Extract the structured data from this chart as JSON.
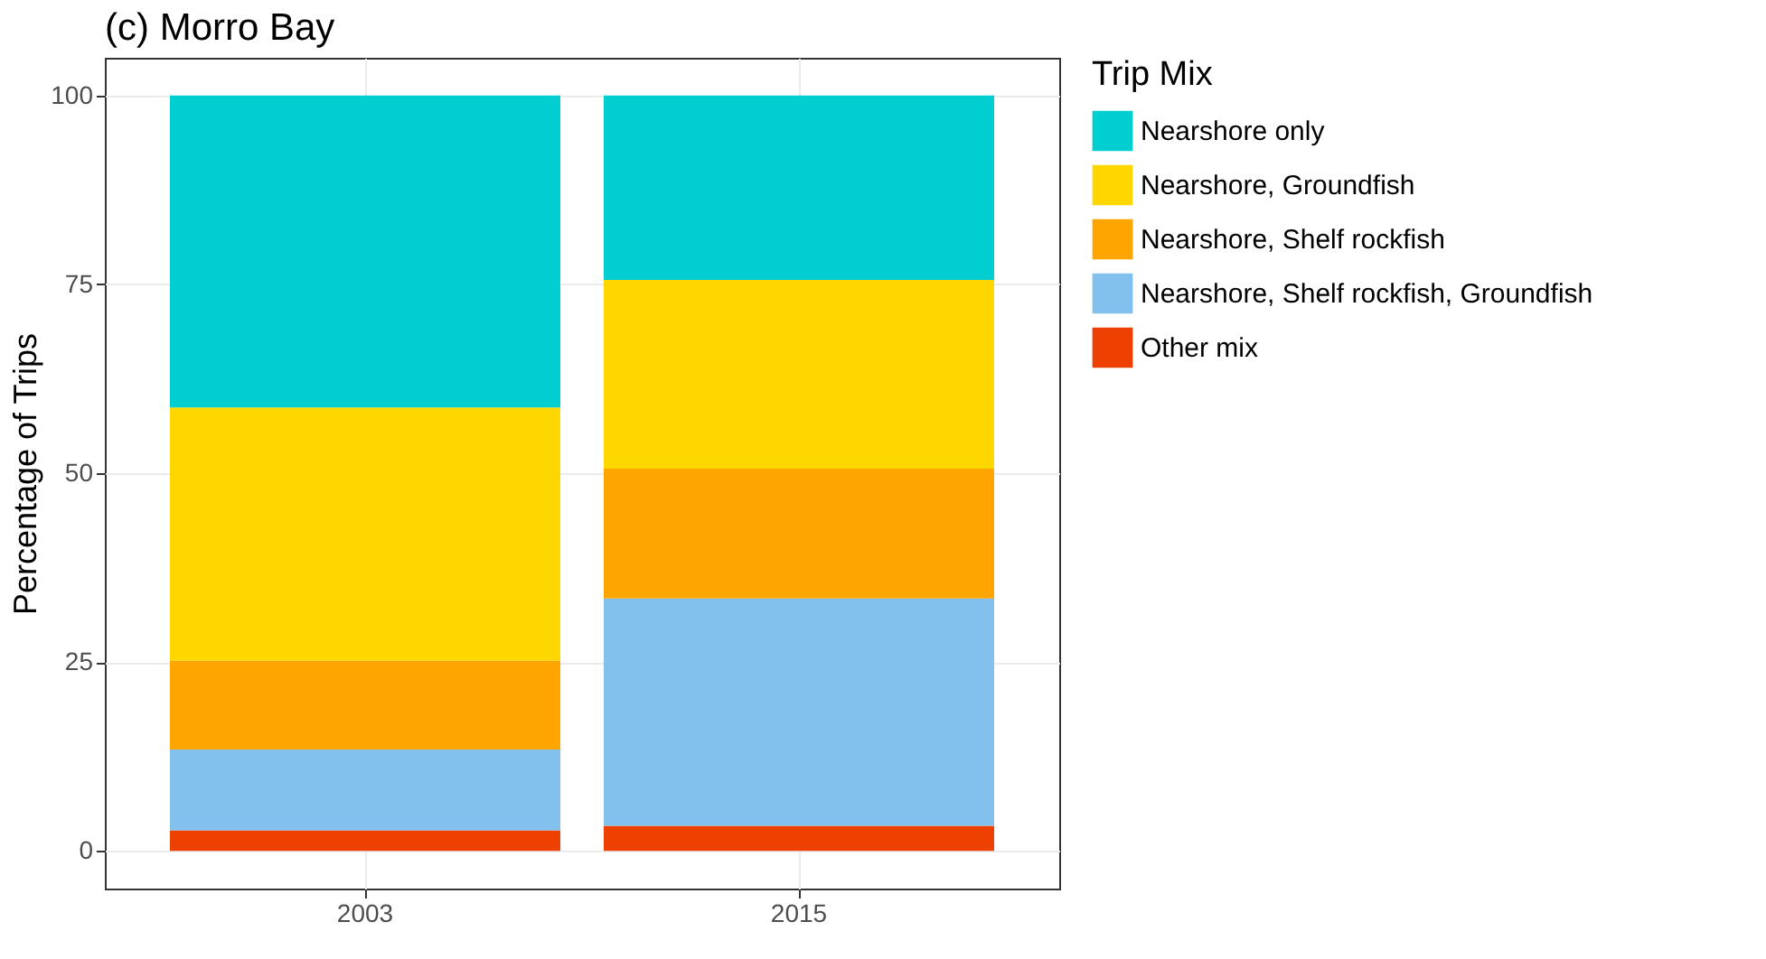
{
  "chart_data": {
    "type": "bar",
    "title": "(c) Morro Bay",
    "ylabel": "Percentage of Trips",
    "legend_title": "Trip Mix",
    "categories": [
      "2003",
      "2015"
    ],
    "stacked": true,
    "series": [
      {
        "name": "Other mix",
        "color": "#ee4000",
        "values": [
          2.7,
          3.3
        ]
      },
      {
        "name": "Nearshore, Shelf rockfish, Groundfish",
        "color": "#82c0ee",
        "values": [
          10.7,
          30.1
        ]
      },
      {
        "name": "Nearshore, Shelf rockfish",
        "color": "#ffa500",
        "values": [
          11.8,
          17.2
        ]
      },
      {
        "name": "Nearshore, Groundfish",
        "color": "#ffd700",
        "values": [
          33.5,
          25.0
        ]
      },
      {
        "name": "Nearshore only",
        "color": "#00ced1",
        "values": [
          41.3,
          24.4
        ]
      }
    ],
    "ylim": [
      -5,
      105
    ],
    "yticks": [
      0,
      25,
      50,
      75,
      100
    ],
    "grid": true,
    "legend": "right"
  }
}
